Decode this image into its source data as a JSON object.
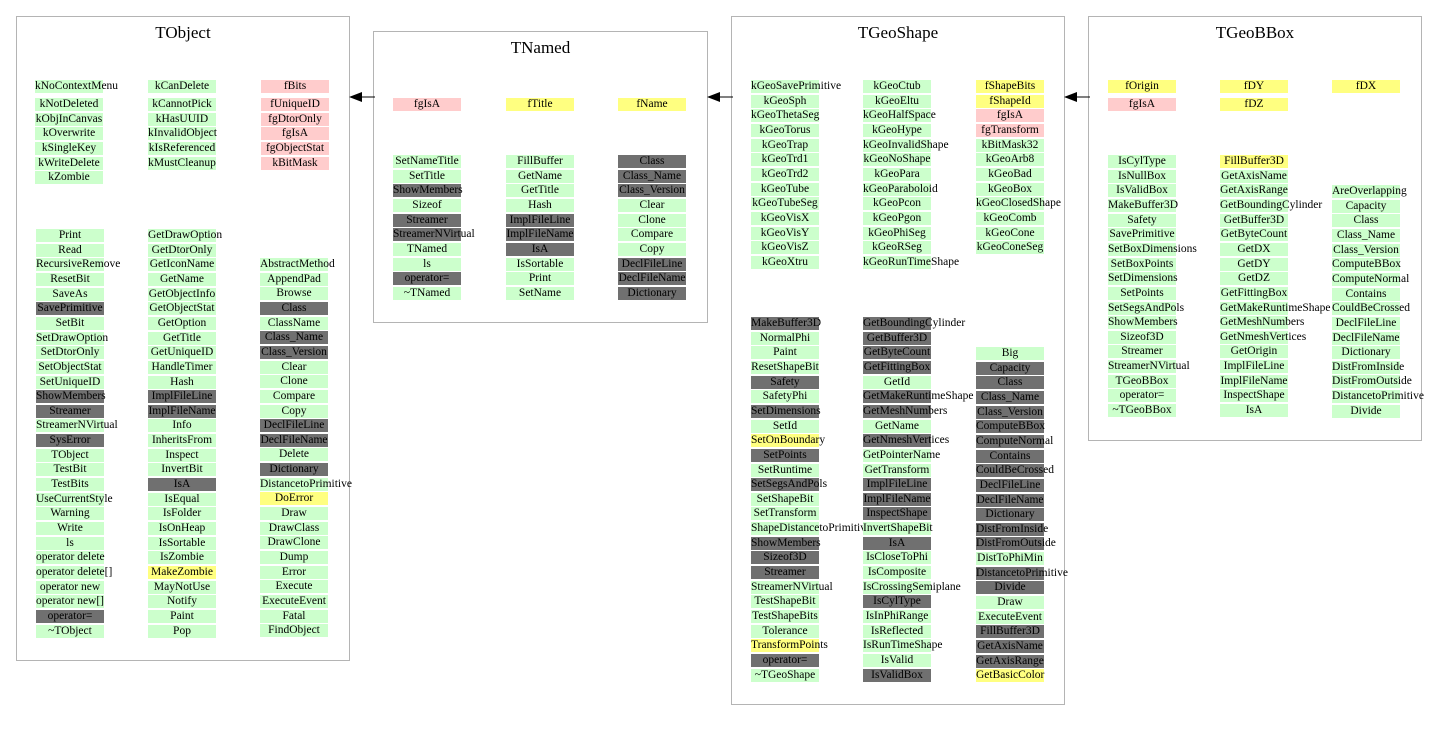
{
  "colors": {
    "method": "#ccffcc",
    "inherited_method": "#707070",
    "data_member_private": "#ffcccc",
    "data_member": "#ffff80",
    "box_border": "#b4b4b4"
  },
  "tobject": {
    "title": "TObject",
    "enums": [
      [
        "kNoContextMenu",
        "kCanDelete",
        "fBits"
      ],
      [
        "kNotDeleted",
        "kCannotPick",
        "fUniqueID"
      ],
      [
        "kObjInCanvas",
        "kHasUUID",
        "fgDtorOnly"
      ],
      [
        "kOverwrite",
        "kInvalidObject",
        "fgIsA"
      ],
      [
        "kSingleKey",
        "kIsReferenced",
        "fgObjectStat"
      ],
      [
        "kWriteDelete",
        "kMustCleanup",
        "kBitMask"
      ],
      [
        "kZombie",
        "",
        ""
      ]
    ],
    "col1": [
      "Print",
      "Read",
      "RecursiveRemove",
      "ResetBit",
      "SaveAs",
      "SavePrimitive",
      "SetBit",
      "SetDrawOption",
      "SetDtorOnly",
      "SetObjectStat",
      "SetUniqueID",
      "ShowMembers",
      "Streamer",
      "StreamerNVirtual",
      "SysError",
      "TObject",
      "TestBit",
      "TestBits",
      "UseCurrentStyle",
      "Warning",
      "Write",
      "ls",
      "operator delete",
      "operator delete[]",
      "operator new",
      "operator new[]",
      "operator=",
      "~TObject"
    ],
    "col2": [
      "GetDrawOption",
      "GetDtorOnly",
      "GetIconName",
      "GetName",
      "GetObjectInfo",
      "GetObjectStat",
      "GetOption",
      "GetTitle",
      "GetUniqueID",
      "HandleTimer",
      "Hash",
      "ImplFileLine",
      "ImplFileName",
      "Info",
      "InheritsFrom",
      "Inspect",
      "InvertBit",
      "IsA",
      "IsEqual",
      "IsFolder",
      "IsOnHeap",
      "IsSortable",
      "IsZombie",
      "MakeZombie",
      "MayNotUse",
      "Notify",
      "Paint",
      "Pop"
    ],
    "col3": [
      "AbstractMethod",
      "AppendPad",
      "Browse",
      "Class",
      "ClassName",
      "Class_Name",
      "Class_Version",
      "Clear",
      "Clone",
      "Compare",
      "Copy",
      "DeclFileLine",
      "DeclFileName",
      "Delete",
      "Dictionary",
      "DistancetoPrimitive",
      "DoError",
      "Draw",
      "DrawClass",
      "DrawClone",
      "Dump",
      "Error",
      "Execute",
      "ExecuteEvent",
      "Fatal",
      "FindObject"
    ]
  },
  "tnamed": {
    "title": "TNamed",
    "members": [
      "fgIsA",
      "fTitle",
      "fName"
    ],
    "col1": [
      "SetNameTitle",
      "SetTitle",
      "ShowMembers",
      "Sizeof",
      "Streamer",
      "StreamerNVirtual",
      "TNamed",
      "ls",
      "operator=",
      "~TNamed"
    ],
    "col2": [
      "FillBuffer",
      "GetName",
      "GetTitle",
      "Hash",
      "ImplFileLine",
      "ImplFileName",
      "IsA",
      "IsSortable",
      "Print",
      "SetName"
    ],
    "col3": [
      "Class",
      "Class_Name",
      "Class_Version",
      "Clear",
      "Clone",
      "Compare",
      "Copy",
      "DeclFileLine",
      "DeclFileName",
      "Dictionary"
    ]
  },
  "tgeoshape": {
    "title": "TGeoShape",
    "enum_col1": [
      "kGeoSavePrimitive",
      "kGeoSph",
      "kGeoThetaSeg",
      "kGeoTorus",
      "kGeoTrap",
      "kGeoTrd1",
      "kGeoTrd2",
      "kGeoTube",
      "kGeoTubeSeg",
      "kGeoVisX",
      "kGeoVisY",
      "kGeoVisZ",
      "kGeoXtru"
    ],
    "enum_col2": [
      "kGeoCtub",
      "kGeoEltu",
      "kGeoHalfSpace",
      "kGeoHype",
      "kGeoInvalidShape",
      "kGeoNoShape",
      "kGeoPara",
      "kGeoParaboloid",
      "kGeoPcon",
      "kGeoPgon",
      "kGeoPhiSeg",
      "kGeoRSeg",
      "kGeoRunTimeShape"
    ],
    "enum_col3": [
      "fShapeBits",
      "fShapeId",
      "fgIsA",
      "fgTransform",
      "kBitMask32",
      "kGeoArb8",
      "kGeoBad",
      "kGeoBox",
      "kGeoClosedShape",
      "kGeoComb",
      "kGeoCone",
      "kGeoConeSeg"
    ],
    "col1": [
      "MakeBuffer3D",
      "NormalPhi",
      "Paint",
      "ResetShapeBit",
      "Safety",
      "SafetyPhi",
      "SetDimensions",
      "SetId",
      "SetOnBoundary",
      "SetPoints",
      "SetRuntime",
      "SetSegsAndPols",
      "SetShapeBit",
      "SetTransform",
      "ShapeDistancetoPrimitive",
      "ShowMembers",
      "Sizeof3D",
      "Streamer",
      "StreamerNVirtual",
      "TestShapeBit",
      "TestShapeBits",
      "Tolerance",
      "TransformPoints",
      "operator=",
      "~TGeoShape"
    ],
    "col2": [
      "GetBoundingCylinder",
      "GetBuffer3D",
      "GetByteCount",
      "GetFittingBox",
      "GetId",
      "GetMakeRuntimeShape",
      "GetMeshNumbers",
      "GetName",
      "GetNmeshVertices",
      "GetPointerName",
      "GetTransform",
      "ImplFileLine",
      "ImplFileName",
      "InspectShape",
      "InvertShapeBit",
      "IsA",
      "IsCloseToPhi",
      "IsComposite",
      "IsCrossingSemiplane",
      "IsCylType",
      "IsInPhiRange",
      "IsReflected",
      "IsRunTimeShape",
      "IsValid",
      "IsValidBox"
    ],
    "col3": [
      "Big",
      "Capacity",
      "Class",
      "Class_Name",
      "Class_Version",
      "ComputeBBox",
      "ComputeNormal",
      "Contains",
      "CouldBeCrossed",
      "DeclFileLine",
      "DeclFileName",
      "Dictionary",
      "DistFromInside",
      "DistFromOutside",
      "DistToPhiMin",
      "DistancetoPrimitive",
      "Divide",
      "Draw",
      "ExecuteEvent",
      "FillBuffer3D",
      "GetAxisName",
      "GetAxisRange",
      "GetBasicColor"
    ]
  },
  "tgeobbox": {
    "title": "TGeoBBox",
    "members_row1": [
      "fOrigin",
      "fDY",
      "fDX"
    ],
    "members_row2": [
      "fgIsA",
      "fDZ"
    ],
    "col1": [
      "IsCylType",
      "IsNullBox",
      "IsValidBox",
      "MakeBuffer3D",
      "Safety",
      "SavePrimitive",
      "SetBoxDimensions",
      "SetBoxPoints",
      "SetDimensions",
      "SetPoints",
      "SetSegsAndPols",
      "ShowMembers",
      "Sizeof3D",
      "Streamer",
      "StreamerNVirtual",
      "TGeoBBox",
      "operator=",
      "~TGeoBBox"
    ],
    "col2": [
      "FillBuffer3D",
      "GetAxisName",
      "GetAxisRange",
      "GetBoundingCylinder",
      "GetBuffer3D",
      "GetByteCount",
      "GetDX",
      "GetDY",
      "GetDZ",
      "GetFittingBox",
      "GetMakeRuntimeShape",
      "GetMeshNumbers",
      "GetNmeshVertices",
      "GetOrigin",
      "ImplFileLine",
      "ImplFileName",
      "InspectShape",
      "IsA"
    ],
    "col3": [
      "AreOverlapping",
      "Capacity",
      "Class",
      "Class_Name",
      "Class_Version",
      "ComputeBBox",
      "ComputeNormal",
      "Contains",
      "CouldBeCrossed",
      "DeclFileLine",
      "DeclFileName",
      "Dictionary",
      "DistFromInside",
      "DistFromOutside",
      "DistancetoPrimitive",
      "Divide"
    ]
  }
}
